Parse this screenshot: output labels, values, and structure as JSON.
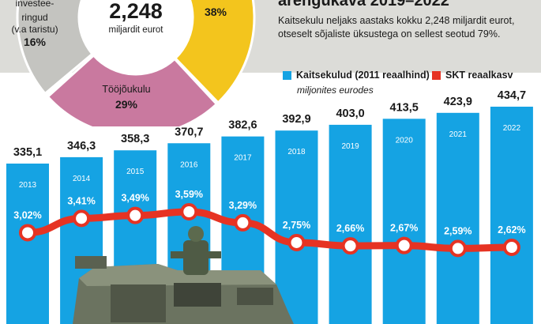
{
  "header": {
    "title": "arengukava 2019–2022",
    "intro": "Kaitsekulu neljaks aastaks kokku 2,248 miljardit eurot, otseselt sõjaliste üksustega on sellest seotud 79%."
  },
  "donut": {
    "center_value": "2,248",
    "center_unit": "miljardit eurot",
    "segments": [
      {
        "label_lines": [
          "investee-",
          "ringud",
          "(v.a taristu)"
        ],
        "value_text": "16%",
        "color": "#c4c4c0"
      },
      {
        "label_lines": [],
        "value_text": "38%",
        "color": "#f3c51d"
      },
      {
        "label_lines": [
          "Tööjõukulu"
        ],
        "value_text": "29%",
        "color": "#c9799f"
      }
    ]
  },
  "legend": {
    "bars_label": "Kaitsekulud (2011 reaalhind)",
    "bars_sublabel": "miljonites eurodes",
    "line_label": "SKT reaalkasv",
    "bar_color": "#15a3e3",
    "line_color": "#e63323"
  },
  "chart_data": {
    "type": "bar",
    "categories": [
      "2013",
      "2014",
      "2015",
      "2016",
      "2017",
      "2018",
      "2019",
      "2020",
      "2021",
      "2022"
    ],
    "series": [
      {
        "name": "Kaitsekulud (2011 reaalhind)",
        "values": [
          335.1,
          346.3,
          358.3,
          370.7,
          382.6,
          392.9,
          403.0,
          413.5,
          423.9,
          434.7
        ],
        "labels": [
          "335,1",
          "346,3",
          "358,3",
          "370,7",
          "382,6",
          "392,9",
          "403,0",
          "413,5",
          "423,9",
          "434,7"
        ]
      },
      {
        "name": "SKT reaalkasv",
        "type": "line",
        "values": [
          3.02,
          3.41,
          3.49,
          3.59,
          3.29,
          2.75,
          2.66,
          2.67,
          2.59,
          2.62
        ],
        "labels": [
          "3,02%",
          "3,41%",
          "3,49%",
          "3,59%",
          "3,29%",
          "2,75%",
          "2,66%",
          "2,67%",
          "2,59%",
          "2,62%"
        ]
      }
    ]
  }
}
